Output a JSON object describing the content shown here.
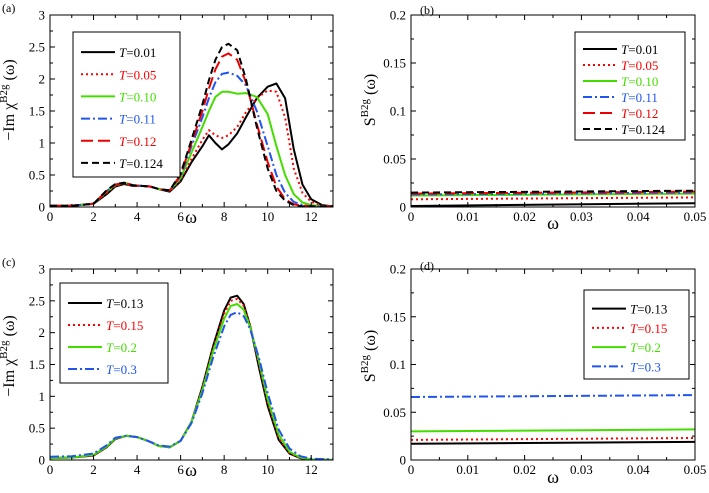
{
  "chart_data": [
    {
      "id": "a",
      "type": "line",
      "panel_label": "(a)",
      "ylabel_main": "−Im χ",
      "ylabel_sup": "B2g",
      "ylabel_arg": "(ω)",
      "xlabel": "ω",
      "xlim": [
        0,
        13
      ],
      "ylim": [
        0,
        3
      ],
      "xticks": [
        0,
        2,
        4,
        6,
        8,
        10,
        12
      ],
      "xtick_labels": [
        "0",
        "2",
        "4",
        "6",
        "8",
        "10",
        "12"
      ],
      "yticks": [
        0,
        0.5,
        1,
        1.5,
        2,
        2.5,
        3
      ],
      "ytick_labels": [
        "0",
        "0.5",
        "1",
        "1.5",
        "2",
        "2.5",
        "3"
      ],
      "legend_position": "top-left",
      "series": [
        {
          "name": "T=0.01",
          "color": "#000000",
          "dash": "solid",
          "x": [
            0,
            1,
            2,
            2.6,
            3.0,
            3.4,
            3.8,
            4.2,
            4.6,
            5.0,
            5.5,
            6.0,
            6.5,
            7.0,
            7.3,
            7.6,
            7.9,
            8.2,
            8.6,
            9.0,
            9.5,
            10.0,
            10.4,
            10.8,
            11.2,
            11.6,
            12.0,
            12.5,
            13
          ],
          "y": [
            0.02,
            0.02,
            0.05,
            0.2,
            0.32,
            0.36,
            0.33,
            0.33,
            0.32,
            0.28,
            0.24,
            0.4,
            0.7,
            0.95,
            1.12,
            1.0,
            0.9,
            0.98,
            1.15,
            1.4,
            1.7,
            1.88,
            1.93,
            1.7,
            0.9,
            0.35,
            0.12,
            0.03,
            0.01
          ]
        },
        {
          "name": "T=0.05",
          "color": "#ff0000",
          "dash": "dotted",
          "x": [
            0,
            1,
            2,
            2.6,
            3.0,
            3.4,
            3.8,
            4.2,
            4.6,
            5.0,
            5.5,
            6.0,
            6.5,
            7.0,
            7.3,
            7.6,
            7.9,
            8.2,
            8.6,
            9.0,
            9.5,
            10.0,
            10.4,
            10.8,
            11.2,
            11.6,
            12.0,
            12.5,
            13
          ],
          "y": [
            0.02,
            0.02,
            0.05,
            0.22,
            0.33,
            0.37,
            0.33,
            0.33,
            0.32,
            0.28,
            0.25,
            0.42,
            0.75,
            1.05,
            1.2,
            1.12,
            1.08,
            1.12,
            1.25,
            1.48,
            1.7,
            1.82,
            1.8,
            1.4,
            0.6,
            0.22,
            0.08,
            0.02,
            0.01
          ]
        },
        {
          "name": "T=0.10",
          "color": "#44dd00",
          "dash": "solid",
          "x": [
            0,
            1,
            2,
            2.6,
            3.0,
            3.4,
            3.8,
            4.2,
            4.6,
            5.0,
            5.5,
            6.0,
            6.5,
            7.0,
            7.3,
            7.6,
            7.9,
            8.2,
            8.6,
            9.0,
            9.5,
            10.0,
            10.4,
            10.8,
            11.2,
            11.6,
            12.0,
            12.5,
            13
          ],
          "y": [
            0.02,
            0.02,
            0.05,
            0.24,
            0.34,
            0.38,
            0.34,
            0.33,
            0.32,
            0.28,
            0.26,
            0.45,
            0.85,
            1.25,
            1.5,
            1.72,
            1.8,
            1.8,
            1.77,
            1.78,
            1.72,
            1.45,
            0.95,
            0.5,
            0.2,
            0.07,
            0.03,
            0.01,
            0.01
          ]
        },
        {
          "name": "T=0.11",
          "color": "#2255ee",
          "dash": "dashdot",
          "x": [
            0,
            1,
            2,
            2.6,
            3.0,
            3.4,
            3.8,
            4.2,
            4.6,
            5.0,
            5.5,
            6.0,
            6.5,
            7.0,
            7.3,
            7.6,
            7.9,
            8.2,
            8.6,
            9.0,
            9.5,
            10.0,
            10.4,
            10.8,
            11.2,
            11.6,
            12.0,
            12.5,
            13
          ],
          "y": [
            0.02,
            0.02,
            0.05,
            0.25,
            0.35,
            0.38,
            0.34,
            0.33,
            0.32,
            0.28,
            0.26,
            0.48,
            0.95,
            1.4,
            1.7,
            1.95,
            2.08,
            2.1,
            2.05,
            1.9,
            1.5,
            0.95,
            0.5,
            0.22,
            0.08,
            0.03,
            0.01,
            0.01,
            0.01
          ]
        },
        {
          "name": "T=0.12",
          "color": "#ee0000",
          "dash": "longdash",
          "x": [
            0,
            1,
            2,
            2.6,
            3.0,
            3.4,
            3.8,
            4.2,
            4.6,
            5.0,
            5.5,
            6.0,
            6.5,
            7.0,
            7.3,
            7.6,
            7.9,
            8.2,
            8.6,
            9.0,
            9.5,
            10.0,
            10.4,
            10.8,
            11.2,
            11.6,
            12.0,
            12.5,
            13
          ],
          "y": [
            0.02,
            0.02,
            0.05,
            0.25,
            0.35,
            0.38,
            0.34,
            0.33,
            0.32,
            0.28,
            0.26,
            0.5,
            1.0,
            1.5,
            1.85,
            2.15,
            2.35,
            2.4,
            2.3,
            1.95,
            1.3,
            0.7,
            0.32,
            0.12,
            0.04,
            0.02,
            0.01,
            0.01,
            0.01
          ]
        },
        {
          "name": "T=0.124",
          "color": "#000000",
          "dash": "dashed",
          "x": [
            0,
            1,
            2,
            2.6,
            3.0,
            3.4,
            3.8,
            4.2,
            4.6,
            5.0,
            5.5,
            6.0,
            6.5,
            7.0,
            7.3,
            7.6,
            7.9,
            8.2,
            8.6,
            9.0,
            9.5,
            10.0,
            10.4,
            10.8,
            11.2,
            11.6,
            12.0,
            12.5,
            13
          ],
          "y": [
            0.02,
            0.02,
            0.05,
            0.26,
            0.36,
            0.38,
            0.34,
            0.33,
            0.32,
            0.28,
            0.26,
            0.52,
            1.05,
            1.6,
            1.98,
            2.3,
            2.5,
            2.55,
            2.45,
            2.0,
            1.25,
            0.6,
            0.25,
            0.1,
            0.03,
            0.01,
            0.01,
            0.01,
            0.01
          ]
        }
      ]
    },
    {
      "id": "b",
      "type": "line",
      "panel_label": "(b)",
      "ylabel_main": "S",
      "ylabel_sup": "B2g",
      "ylabel_arg": "(ω)",
      "xlabel": "ω",
      "xlim": [
        0,
        0.05
      ],
      "ylim": [
        0,
        0.2
      ],
      "xticks": [
        0,
        0.01,
        0.02,
        0.03,
        0.04,
        0.05
      ],
      "xtick_labels": [
        "0",
        "0.01",
        "0.02",
        "0.03",
        "0.04",
        "0.05"
      ],
      "yticks": [
        0,
        0.05,
        0.1,
        0.15,
        0.2
      ],
      "ytick_labels": [
        "0",
        "0.05",
        "0.1",
        "0.15",
        "0.2"
      ],
      "legend_position": "top-right",
      "series": [
        {
          "name": "T=0.01",
          "color": "#000000",
          "dash": "solid",
          "x": [
            0,
            0.05
          ],
          "y": [
            0.001,
            0.004
          ]
        },
        {
          "name": "T=0.05",
          "color": "#ff0000",
          "dash": "dotted",
          "x": [
            0,
            0.05
          ],
          "y": [
            0.008,
            0.01
          ]
        },
        {
          "name": "T=0.10",
          "color": "#44dd00",
          "dash": "solid",
          "x": [
            0,
            0.05
          ],
          "y": [
            0.012,
            0.014
          ]
        },
        {
          "name": "T=0.11",
          "color": "#2255ee",
          "dash": "dashdot",
          "x": [
            0,
            0.05
          ],
          "y": [
            0.013,
            0.015
          ]
        },
        {
          "name": "T=0.12",
          "color": "#ee0000",
          "dash": "longdash",
          "x": [
            0,
            0.05
          ],
          "y": [
            0.014,
            0.016
          ]
        },
        {
          "name": "T=0.124",
          "color": "#000000",
          "dash": "dashed",
          "x": [
            0,
            0.05
          ],
          "y": [
            0.015,
            0.017
          ]
        }
      ]
    },
    {
      "id": "c",
      "type": "line",
      "panel_label": "(c)",
      "ylabel_main": "−Im χ",
      "ylabel_sup": "B2g",
      "ylabel_arg": "(ω)",
      "xlabel": "ω",
      "xlim": [
        0,
        13
      ],
      "ylim": [
        0,
        3
      ],
      "xticks": [
        0,
        2,
        4,
        6,
        8,
        10,
        12
      ],
      "xtick_labels": [
        "0",
        "2",
        "4",
        "6",
        "8",
        "10",
        "12"
      ],
      "yticks": [
        0,
        0.5,
        1,
        1.5,
        2,
        2.5,
        3
      ],
      "ytick_labels": [
        "0",
        "0.5",
        "1",
        "1.5",
        "2",
        "2.5",
        "3"
      ],
      "legend_position": "top-left",
      "series": [
        {
          "name": "T=0.13",
          "color": "#000000",
          "dash": "solid",
          "x": [
            0,
            1,
            2,
            2.6,
            3.0,
            3.5,
            4.0,
            4.5,
            5.0,
            5.5,
            6.0,
            6.5,
            7.0,
            7.5,
            8.0,
            8.3,
            8.6,
            8.9,
            9.2,
            9.6,
            10.0,
            10.5,
            11.0,
            11.5,
            12.0,
            13
          ],
          "y": [
            0.03,
            0.04,
            0.07,
            0.2,
            0.33,
            0.38,
            0.36,
            0.3,
            0.22,
            0.2,
            0.3,
            0.6,
            1.15,
            1.8,
            2.35,
            2.55,
            2.58,
            2.45,
            2.1,
            1.45,
            0.85,
            0.32,
            0.1,
            0.03,
            0.01,
            0.0
          ]
        },
        {
          "name": "T=0.15",
          "color": "#ff0000",
          "dash": "dotted",
          "x": [
            0,
            1,
            2,
            2.6,
            3.0,
            3.5,
            4.0,
            4.5,
            5.0,
            5.5,
            6.0,
            6.5,
            7.0,
            7.5,
            8.0,
            8.3,
            8.6,
            8.9,
            9.2,
            9.6,
            10.0,
            10.5,
            11.0,
            11.5,
            12.0,
            13
          ],
          "y": [
            0.03,
            0.04,
            0.07,
            0.2,
            0.33,
            0.38,
            0.36,
            0.3,
            0.22,
            0.2,
            0.3,
            0.6,
            1.13,
            1.77,
            2.3,
            2.5,
            2.53,
            2.42,
            2.1,
            1.5,
            0.9,
            0.35,
            0.11,
            0.03,
            0.01,
            0.0
          ]
        },
        {
          "name": "T=0.2",
          "color": "#44dd00",
          "dash": "solid",
          "x": [
            0,
            1,
            2,
            2.6,
            3.0,
            3.5,
            4.0,
            4.5,
            5.0,
            5.5,
            6.0,
            6.5,
            7.0,
            7.5,
            8.0,
            8.3,
            8.6,
            8.9,
            9.2,
            9.6,
            10.0,
            10.5,
            11.0,
            11.5,
            12.0,
            13
          ],
          "y": [
            0.03,
            0.04,
            0.08,
            0.21,
            0.34,
            0.38,
            0.36,
            0.3,
            0.22,
            0.2,
            0.3,
            0.6,
            1.1,
            1.72,
            2.22,
            2.42,
            2.45,
            2.36,
            2.08,
            1.55,
            0.95,
            0.4,
            0.13,
            0.04,
            0.01,
            0.0
          ]
        },
        {
          "name": "T=0.3",
          "color": "#2255ee",
          "dash": "dashdot",
          "x": [
            0,
            1,
            2,
            2.6,
            3.0,
            3.5,
            4.0,
            4.5,
            5.0,
            5.5,
            6.0,
            6.5,
            7.0,
            7.5,
            8.0,
            8.3,
            8.6,
            8.9,
            9.2,
            9.6,
            10.0,
            10.5,
            11.0,
            11.5,
            12.0,
            13
          ],
          "y": [
            0.05,
            0.06,
            0.1,
            0.23,
            0.35,
            0.38,
            0.36,
            0.3,
            0.23,
            0.21,
            0.3,
            0.58,
            1.05,
            1.62,
            2.1,
            2.28,
            2.32,
            2.26,
            2.05,
            1.6,
            1.05,
            0.48,
            0.18,
            0.06,
            0.02,
            0.01
          ]
        }
      ]
    },
    {
      "id": "d",
      "type": "line",
      "panel_label": "(d)",
      "ylabel_main": "S",
      "ylabel_sup": "B2g",
      "ylabel_arg": "(ω)",
      "xlabel": "ω",
      "xlim": [
        0,
        0.05
      ],
      "ylim": [
        0,
        0.2
      ],
      "xticks": [
        0,
        0.01,
        0.02,
        0.03,
        0.04,
        0.05
      ],
      "xtick_labels": [
        "0",
        "0.01",
        "0.02",
        "0.03",
        "0.04",
        "0.05"
      ],
      "yticks": [
        0,
        0.05,
        0.1,
        0.15,
        0.2
      ],
      "ytick_labels": [
        "0",
        "0.05",
        "0.1",
        "0.15",
        "0.2"
      ],
      "legend_position": "top-right",
      "series": [
        {
          "name": "T=0.13",
          "color": "#000000",
          "dash": "solid",
          "x": [
            0,
            0.05
          ],
          "y": [
            0.017,
            0.019
          ]
        },
        {
          "name": "T=0.15",
          "color": "#ff0000",
          "dash": "dotted",
          "x": [
            0,
            0.05
          ],
          "y": [
            0.021,
            0.023
          ]
        },
        {
          "name": "T=0.2",
          "color": "#44dd00",
          "dash": "solid",
          "x": [
            0,
            0.05
          ],
          "y": [
            0.03,
            0.032
          ]
        },
        {
          "name": "T=0.3",
          "color": "#2255ee",
          "dash": "dashdot",
          "x": [
            0,
            0.05
          ],
          "y": [
            0.066,
            0.068
          ]
        }
      ]
    }
  ]
}
